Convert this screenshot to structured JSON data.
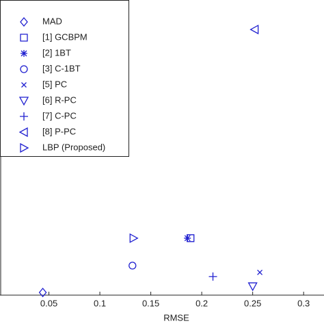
{
  "chart_data": {
    "type": "scatter",
    "x_label": "RMSE",
    "xlim": [
      0.002,
      0.32
    ],
    "xticks": [
      0.05,
      0.1,
      0.15,
      0.2,
      0.25,
      0.3
    ],
    "ylim": [
      0,
      1
    ],
    "legend": "upper-left",
    "series": [
      {
        "name": "MAD",
        "marker": "diamond",
        "color": "#1f1fd0",
        "x": [
          0.044
        ],
        "values": [
          0.009
        ]
      },
      {
        "name": "[1] GCBPM",
        "marker": "square",
        "color": "#1f1fd0",
        "x": [
          0.189
        ],
        "values": [
          0.193
        ]
      },
      {
        "name": "[2] 1BT",
        "marker": "star",
        "color": "#1f1fd0",
        "x": [
          0.186
        ],
        "values": [
          0.193
        ]
      },
      {
        "name": "[3] C-1BT",
        "marker": "circle",
        "color": "#1f1fd0",
        "x": [
          0.132
        ],
        "values": [
          0.1
        ]
      },
      {
        "name": "[5] PC",
        "marker": "x",
        "color": "#1f1fd0",
        "x": [
          0.257
        ],
        "values": [
          0.077
        ]
      },
      {
        "name": "[6] R-PC",
        "marker": "triangle-down",
        "color": "#1f1fd0",
        "x": [
          0.25
        ],
        "values": [
          0.03
        ]
      },
      {
        "name": "[7] C-PC",
        "marker": "plus",
        "color": "#1f1fd0",
        "x": [
          0.211
        ],
        "values": [
          0.063
        ]
      },
      {
        "name": "[8] P-PC",
        "marker": "triangle-left",
        "color": "#1f1fd0",
        "x": [
          0.252
        ],
        "values": [
          0.9
        ]
      },
      {
        "name": "LBP (Proposed)",
        "marker": "triangle-right",
        "color": "#1f1fd0",
        "x": [
          0.133
        ],
        "values": [
          0.193
        ]
      }
    ]
  }
}
